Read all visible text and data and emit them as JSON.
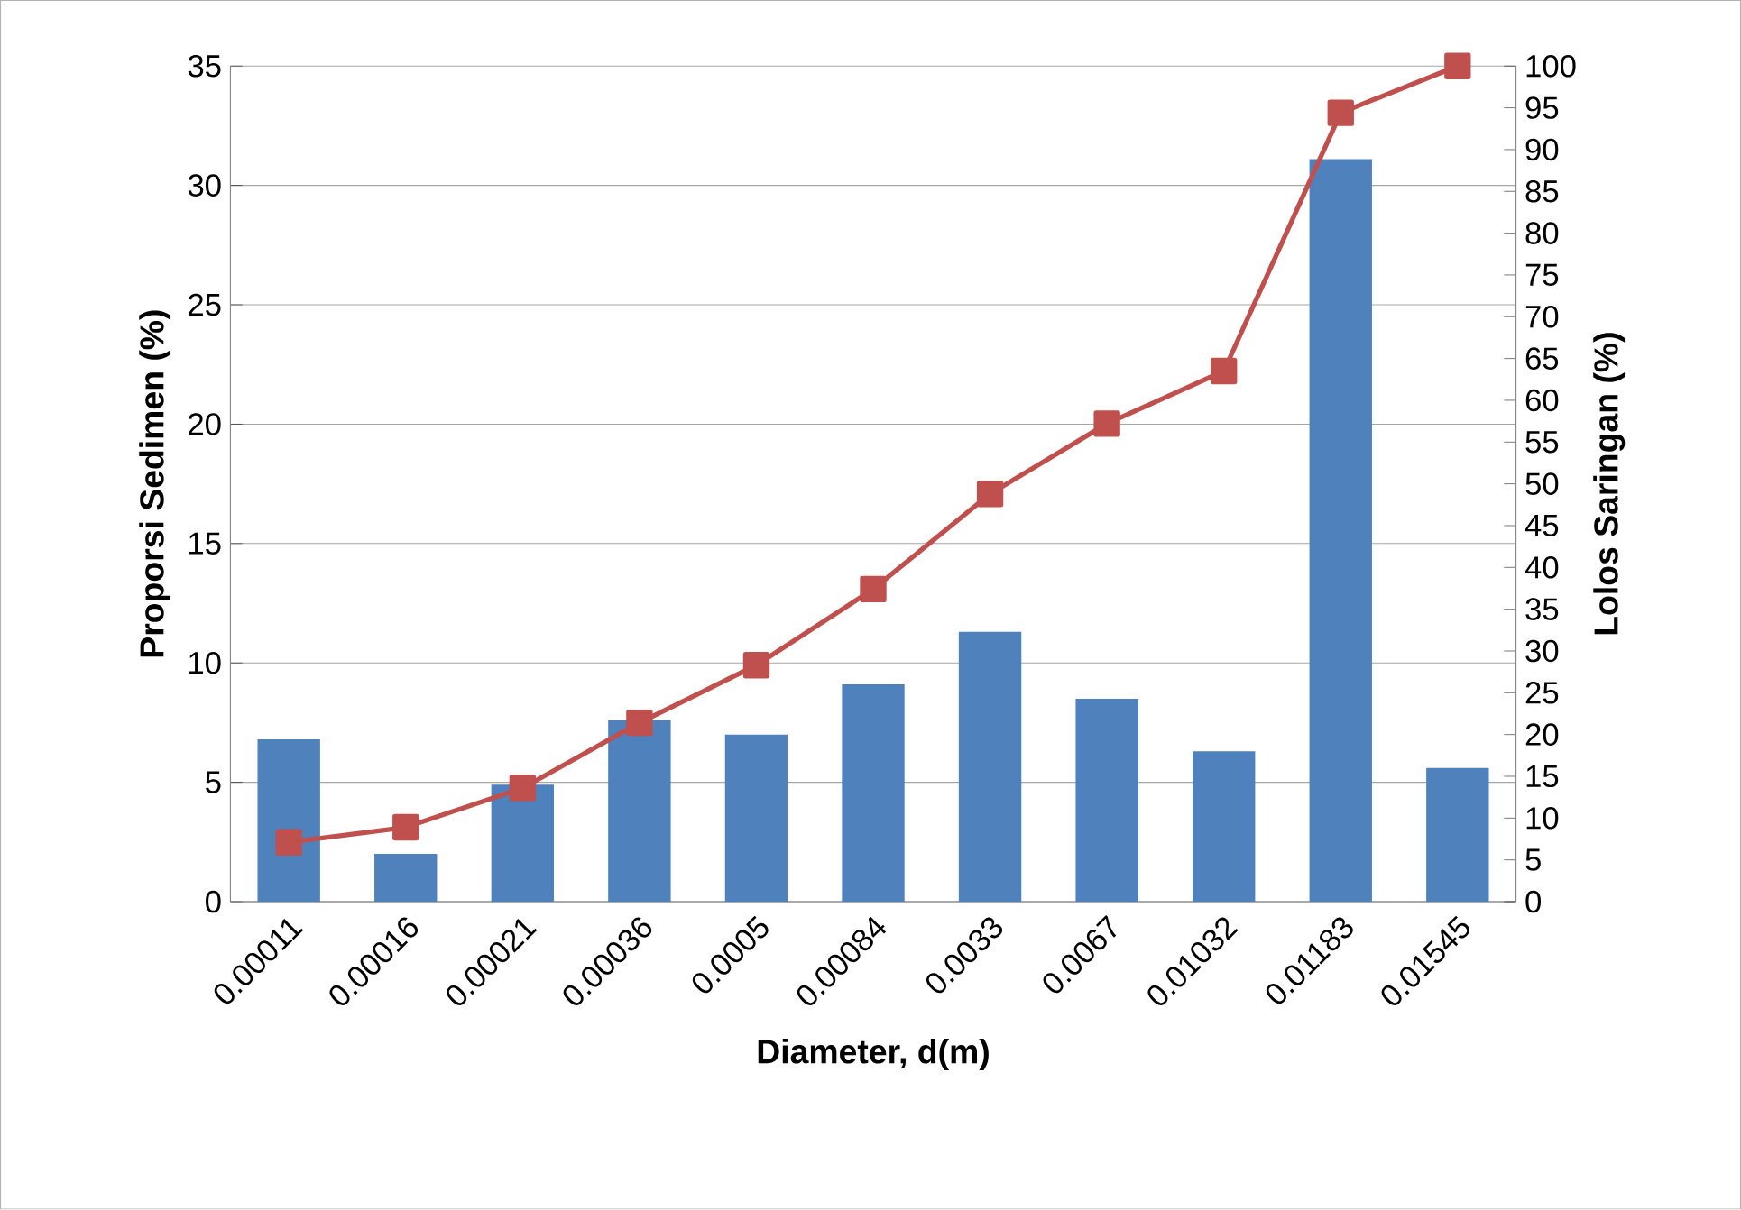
{
  "chart_data": {
    "type": "bar",
    "xlabel": "Diameter, d(m)",
    "ylabel": "Proporsi Sedimen (%)",
    "y2label": "Lolos Saringan (%)",
    "categories": [
      "0.00011",
      "0.00016",
      "0.00021",
      "0.00036",
      "0.0005",
      "0.00084",
      "0.0033",
      "0.0067",
      "0.01032",
      "0.01183",
      "0.01545"
    ],
    "series": [
      {
        "color": "#4f81bd",
        "values": [
          6.8,
          2.0,
          4.9,
          7.6,
          7.0,
          9.1,
          11.3,
          8.5,
          6.3,
          31.1,
          5.6
        ]
      },
      {
        "type": "line",
        "axis": "y2",
        "color": "#c0504d",
        "marker": "square",
        "values": [
          7.1,
          8.9,
          13.6,
          21.4,
          28.3,
          37.4,
          48.8,
          57.2,
          63.5,
          94.4,
          100
        ]
      }
    ],
    "ylim": [
      0,
      35
    ],
    "yticks": [
      0,
      5,
      10,
      15,
      20,
      25,
      30,
      35
    ],
    "y2lim": [
      0,
      100
    ],
    "y2ticks": [
      0,
      5,
      10,
      15,
      20,
      25,
      30,
      35,
      40,
      45,
      50,
      55,
      60,
      65,
      70,
      75,
      80,
      85,
      90,
      95,
      100
    ],
    "grid": "y"
  }
}
